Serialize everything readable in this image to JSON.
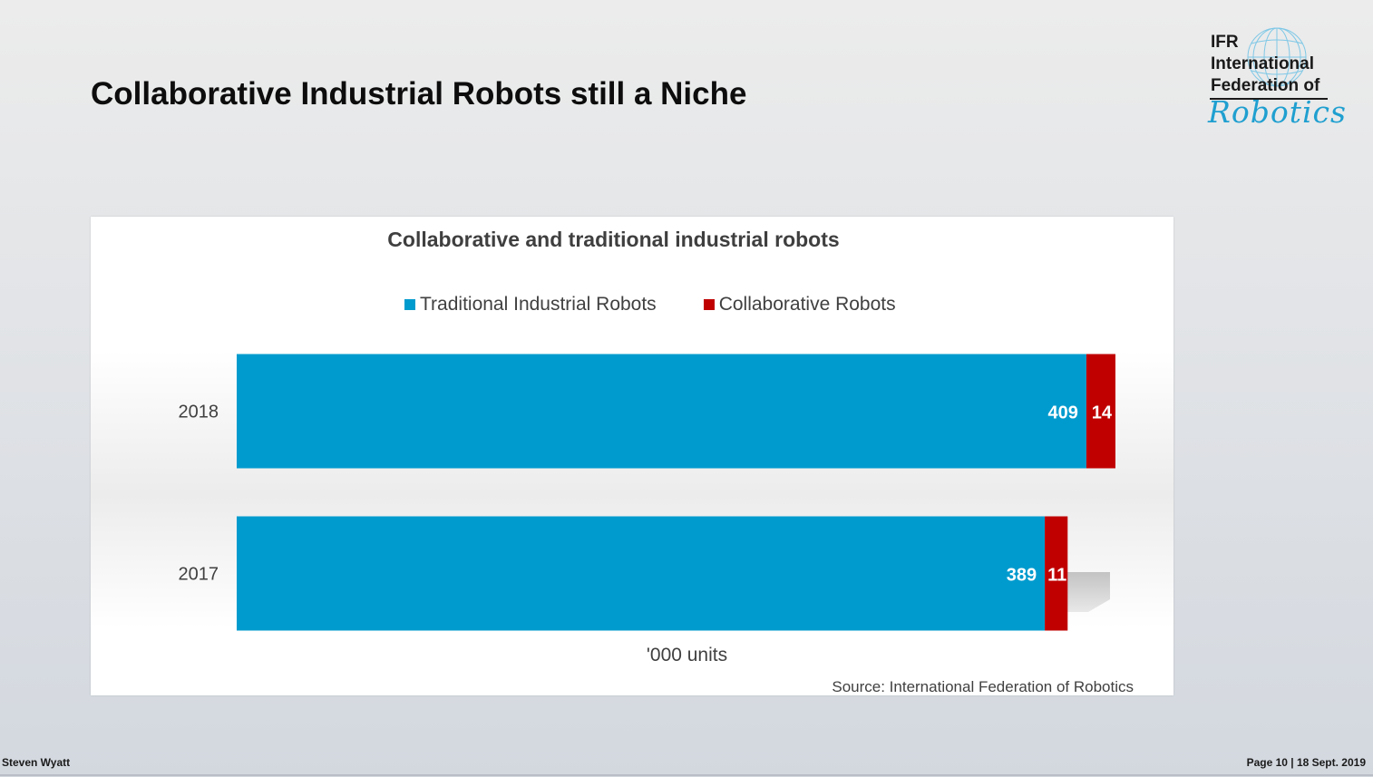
{
  "slide": {
    "title": "Collaborative Industrial Robots still a Niche",
    "footer_left": "Steven Wyatt",
    "footer_right": "Page 10 | 18 Sept. 2019"
  },
  "logo": {
    "line1": "IFR",
    "line2": "International",
    "line3": "Federation of",
    "script": "Robotics"
  },
  "colors": {
    "traditional": "#009BCE",
    "collaborative": "#C00000"
  },
  "chart_data": {
    "type": "bar",
    "orientation": "horizontal",
    "stacked": true,
    "title": "Collaborative and traditional industrial robots",
    "categories": [
      "2018",
      "2017"
    ],
    "series": [
      {
        "name": "Traditional Industrial Robots",
        "values": [
          409,
          389
        ]
      },
      {
        "name": "Collaborative Robots",
        "values": [
          14,
          11
        ]
      }
    ],
    "xlabel": "'000 units",
    "ylabel": "",
    "xlim": [
      0,
      430
    ],
    "grid": false,
    "legend": "top",
    "data_labels": true,
    "source": "Source: International Federation of Robotics"
  }
}
